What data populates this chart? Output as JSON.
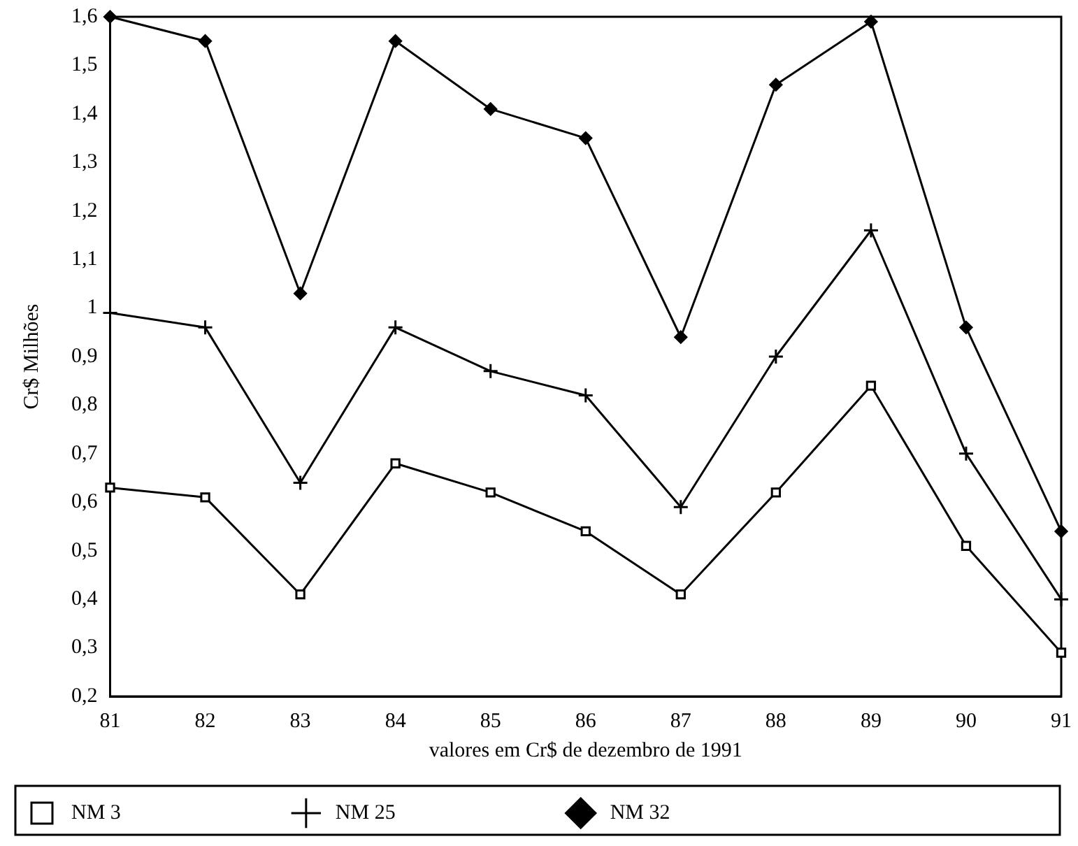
{
  "chart_data": {
    "type": "line",
    "xlabel": "valores em Cr$ de dezembro de 1991",
    "ylabel": "Cr$ Milhões",
    "categories": [
      "81",
      "82",
      "83",
      "84",
      "85",
      "86",
      "87",
      "88",
      "89",
      "90",
      "91"
    ],
    "series": [
      {
        "name": "NM 3",
        "color": "#000000",
        "marker": "square",
        "values": [
          0.63,
          0.61,
          0.41,
          0.68,
          0.62,
          0.54,
          0.41,
          0.62,
          0.84,
          0.51,
          0.29
        ]
      },
      {
        "name": "NM 25",
        "color": "#000000",
        "marker": "cross",
        "values": [
          0.99,
          0.96,
          0.64,
          0.96,
          0.87,
          0.82,
          0.59,
          0.9,
          1.16,
          0.7,
          0.4
        ]
      },
      {
        "name": "NM 32",
        "color": "#000000",
        "marker": "diamond",
        "values": [
          1.6,
          1.55,
          1.03,
          1.55,
          1.41,
          1.35,
          0.94,
          1.46,
          1.59,
          0.96,
          0.54
        ]
      }
    ],
    "ylim": [
      0.2,
      1.6
    ],
    "yticks": [
      {
        "value": 0.2,
        "label": "0,2"
      },
      {
        "value": 0.3,
        "label": "0,3"
      },
      {
        "value": 0.4,
        "label": "0,4"
      },
      {
        "value": 0.5,
        "label": "0,5"
      },
      {
        "value": 0.6,
        "label": "0,6"
      },
      {
        "value": 0.7,
        "label": "0,7"
      },
      {
        "value": 0.8,
        "label": "0,8"
      },
      {
        "value": 0.9,
        "label": "0,9"
      },
      {
        "value": 1,
        "label": "1"
      },
      {
        "value": 1.1,
        "label": "1,1"
      },
      {
        "value": 1.2,
        "label": "1,2"
      },
      {
        "value": 1.3,
        "label": "1,3"
      },
      {
        "value": 1.4,
        "label": "1,4"
      },
      {
        "value": 1.5,
        "label": "1,5"
      },
      {
        "value": 1.6,
        "label": "1,6"
      }
    ],
    "grid": false,
    "legend": "bottom",
    "line_style": "solid"
  }
}
